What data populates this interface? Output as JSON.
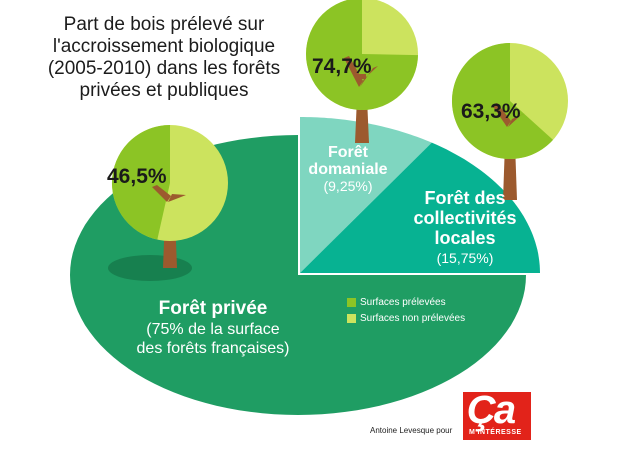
{
  "title_lines": [
    "Part de bois prélevé sur",
    "l'accroissement biologique",
    "(2005-2010) dans les forêts",
    "privées et publiques"
  ],
  "colors": {
    "prelevee": "#8cc425",
    "non_prelevee": "#cce35e",
    "foret_privee": "#1f9d63",
    "foret_domaniale": "#7fd6c0",
    "foret_collectivites": "#07b292",
    "trunk": "#9c5a2e",
    "shadow": "#17804f"
  },
  "chart_data": {
    "type": "pie",
    "title": "Part de bois prélevé sur l'accroissement biologique (2005-2010) dans les forêts privées et publiques",
    "area_shares": [
      {
        "name": "Forêt privée",
        "value": 75,
        "note": "(75% de la surface des forêts françaises)"
      },
      {
        "name": "Forêt domaniale",
        "value": 9.25,
        "note": "(9,25%)"
      },
      {
        "name": "Forêt des collectivités locales",
        "value": 15.75,
        "note": "(15,75%)"
      }
    ],
    "harvest_rates": [
      {
        "forest": "Forêt privée",
        "prelevee": 46.5,
        "non_prelevee": 53.5,
        "label": "46,5%"
      },
      {
        "forest": "Forêt domaniale",
        "prelevee": 74.7,
        "non_prelevee": 25.3,
        "label": "74,7%"
      },
      {
        "forest": "Forêt des collectivités locales",
        "prelevee": 63.3,
        "non_prelevee": 36.7,
        "label": "63,3%"
      }
    ],
    "legend": [
      "Surfaces prélevées",
      "Surfaces non prélevées"
    ]
  },
  "labels": {
    "privee": {
      "name": "Forêt privée",
      "note_lines": [
        "(75% de la surface",
        "des forêts françaises)"
      ]
    },
    "domaniale": {
      "name_lines": [
        "Forêt",
        "domaniale"
      ],
      "note": "(9,25%)"
    },
    "collectivites": {
      "name_lines": [
        "Forêt des",
        "collectivités",
        "locales"
      ],
      "note": "(15,75%)"
    }
  },
  "credit": "Antoine Levesque pour",
  "logo": {
    "main": "Ça",
    "sub": "M'INTÉRESSE"
  }
}
